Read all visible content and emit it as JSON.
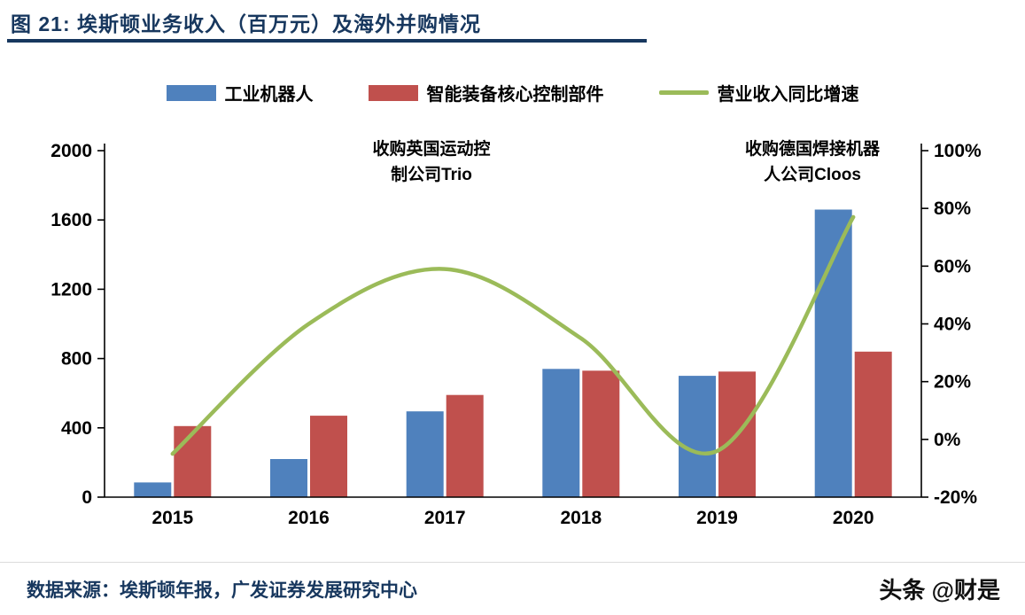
{
  "header": {
    "title": "图 21:  埃斯顿业务收入（百万元）及海外并购情况",
    "accent_color": "#17375E"
  },
  "legend": [
    {
      "label": "工业机器人",
      "type": "bar",
      "color": "#4F81BD"
    },
    {
      "label": "智能装备核心控制部件",
      "type": "bar",
      "color": "#C0504D"
    },
    {
      "label": "营业收入同比增速",
      "type": "line",
      "color": "#9BBB59"
    }
  ],
  "chart_data": {
    "type": "bar",
    "subtype": "grouped bars with overlay line",
    "categories": [
      "2015",
      "2016",
      "2017",
      "2018",
      "2019",
      "2020"
    ],
    "series": [
      {
        "name": "工业机器人",
        "type": "bar",
        "axis": "left",
        "color": "#4F81BD",
        "values": [
          85,
          220,
          495,
          740,
          700,
          1660
        ]
      },
      {
        "name": "智能装备核心控制部件",
        "type": "bar",
        "axis": "left",
        "color": "#C0504D",
        "values": [
          410,
          470,
          590,
          730,
          725,
          840
        ]
      },
      {
        "name": "营业收入同比增速",
        "type": "line",
        "axis": "right",
        "color": "#9BBB59",
        "values_pct": [
          -5,
          40,
          59,
          35,
          -4,
          77
        ]
      }
    ],
    "left_axis": {
      "min": 0,
      "max": 2000,
      "step": 400,
      "labels": [
        "0",
        "400",
        "800",
        "1200",
        "1600",
        "2000"
      ]
    },
    "right_axis": {
      "min": -20,
      "max": 100,
      "step": 20,
      "labels": [
        "-20%",
        "0%",
        "20%",
        "40%",
        "60%",
        "80%",
        "100%"
      ]
    },
    "grid": false,
    "legend_position": "top",
    "title": "埃斯顿业务收入（百万元）及海外并购情况",
    "xlabel": "",
    "ylabel": ""
  },
  "annotations": [
    {
      "text": "收购英国运动控\n制公司Trio"
    },
    {
      "text": "收购德国焊接机器\n人公司Cloos"
    }
  ],
  "footer": {
    "source": "数据来源：埃斯顿年报，广发证券发展研究中心",
    "watermark": "头条 @财是"
  }
}
